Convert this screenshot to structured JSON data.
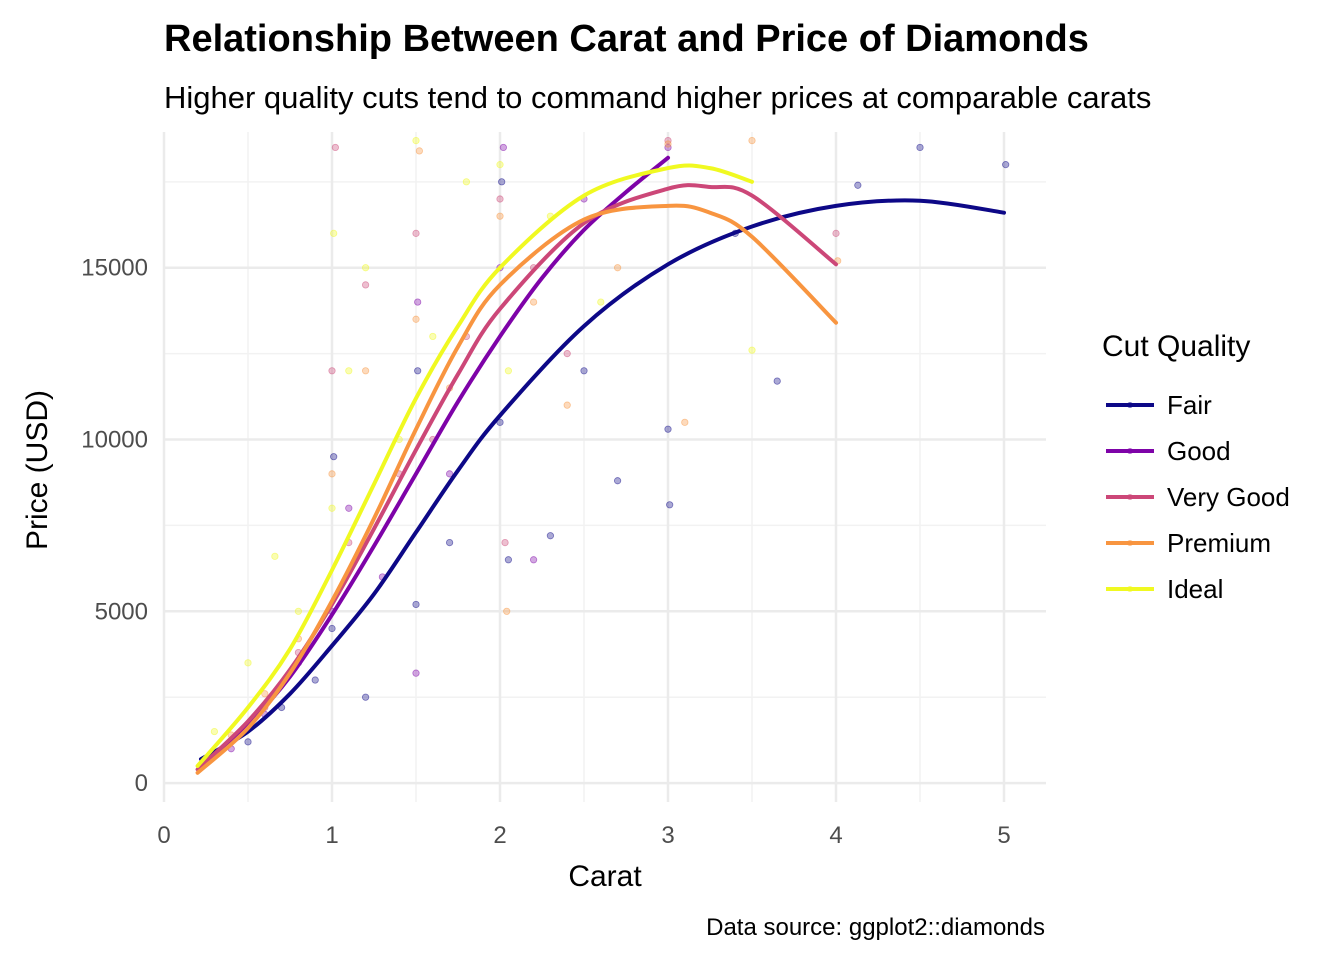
{
  "chart_data": {
    "type": "scatter",
    "title": "Relationship Between Carat and Price of Diamonds",
    "subtitle": "Higher quality cuts tend to command higher prices at comparable carats",
    "xlabel": "Carat",
    "ylabel": "Price (USD)",
    "caption": "Data source: ggplot2::diamonds",
    "xlim": [
      0,
      5.25
    ],
    "ylim": [
      -550,
      18950
    ],
    "x_ticks": [
      0,
      1,
      2,
      3,
      4,
      5
    ],
    "y_ticks": [
      0,
      5000,
      10000,
      15000
    ],
    "grid": true,
    "legend_title": "Cut Quality",
    "legend_position": "right",
    "series": [
      {
        "name": "Fair",
        "color": "#0d0887",
        "trend": {
          "x": [
            0.22,
            0.5,
            0.75,
            1.0,
            1.25,
            1.5,
            1.75,
            2.0,
            2.5,
            3.0,
            3.5,
            4.0,
            4.5,
            5.0
          ],
          "y": [
            700,
            1500,
            2600,
            4000,
            5500,
            7300,
            9100,
            10700,
            13300,
            15100,
            16200,
            16800,
            16950,
            16600
          ]
        },
        "points": {
          "x": [
            0.3,
            0.5,
            0.7,
            0.9,
            1.0,
            1.01,
            1.2,
            1.5,
            1.51,
            1.7,
            2.0,
            2.01,
            2.05,
            2.3,
            2.5,
            2.7,
            3.0,
            3.01,
            3.4,
            3.65,
            4.13,
            4.5,
            5.01
          ],
          "y": [
            800,
            1200,
            2200,
            3000,
            4500,
            9500,
            2500,
            5200,
            12000,
            7000,
            10500,
            17500,
            6500,
            7200,
            12000,
            8800,
            10300,
            8100,
            16000,
            11700,
            17400,
            18500,
            18000
          ]
        }
      },
      {
        "name": "Good",
        "color": "#7e03a8",
        "trend": {
          "x": [
            0.23,
            0.5,
            0.75,
            1.0,
            1.25,
            1.5,
            1.75,
            2.0,
            2.25,
            2.5,
            2.75,
            3.0
          ],
          "y": [
            500,
            1700,
            3100,
            4900,
            6900,
            9000,
            11100,
            13000,
            14700,
            16100,
            17200,
            18200
          ]
        },
        "points": {
          "x": [
            0.4,
            0.6,
            0.8,
            1.0,
            1.1,
            1.3,
            1.5,
            1.51,
            1.7,
            2.0,
            2.02,
            2.2,
            2.5,
            3.0
          ],
          "y": [
            1000,
            2000,
            3500,
            5000,
            8000,
            6000,
            3200,
            14000,
            9000,
            15000,
            18500,
            6500,
            17000,
            18500
          ]
        }
      },
      {
        "name": "Very Good",
        "color": "#cc4778",
        "trend": {
          "x": [
            0.2,
            0.5,
            0.75,
            1.0,
            1.25,
            1.5,
            1.75,
            2.0,
            2.5,
            3.0,
            3.25,
            3.5,
            4.0
          ],
          "y": [
            400,
            1800,
            3300,
            5200,
            7400,
            9700,
            11900,
            13800,
            16300,
            17300,
            17350,
            17100,
            15100
          ]
        },
        "points": {
          "x": [
            0.4,
            0.6,
            0.8,
            1.0,
            1.02,
            1.1,
            1.2,
            1.4,
            1.5,
            1.6,
            1.8,
            2.0,
            2.03,
            2.2,
            2.4,
            3.0,
            4.0
          ],
          "y": [
            1200,
            2200,
            3800,
            12000,
            18500,
            7000,
            14500,
            9000,
            16000,
            10000,
            13000,
            17000,
            7000,
            15000,
            12500,
            18700,
            16000
          ]
        }
      },
      {
        "name": "Premium",
        "color": "#f89540",
        "trend": {
          "x": [
            0.2,
            0.5,
            0.75,
            1.0,
            1.25,
            1.5,
            1.75,
            2.0,
            2.5,
            3.0,
            3.25,
            3.5,
            4.0
          ],
          "y": [
            300,
            1600,
            3200,
            5300,
            7700,
            10300,
            12700,
            14500,
            16400,
            16800,
            16600,
            15900,
            13400
          ]
        },
        "points": {
          "x": [
            0.4,
            0.6,
            0.8,
            1.0,
            1.2,
            1.5,
            1.52,
            1.7,
            2.0,
            2.04,
            2.2,
            2.4,
            2.7,
            3.0,
            3.1,
            3.5,
            4.01
          ],
          "y": [
            1400,
            2600,
            4200,
            9000,
            12000,
            13500,
            18400,
            11500,
            16500,
            5000,
            14000,
            11000,
            15000,
            18600,
            10500,
            18700,
            15200
          ]
        }
      },
      {
        "name": "Ideal",
        "color": "#f0f921",
        "trend": {
          "x": [
            0.2,
            0.5,
            0.75,
            1.0,
            1.25,
            1.5,
            1.75,
            2.0,
            2.5,
            3.0,
            3.25,
            3.5
          ],
          "y": [
            500,
            2200,
            3900,
            6200,
            8700,
            11200,
            13300,
            15000,
            17100,
            17900,
            17900,
            17500
          ]
        },
        "points": {
          "x": [
            0.3,
            0.5,
            0.66,
            0.8,
            1.0,
            1.01,
            1.1,
            1.2,
            1.4,
            1.5,
            1.6,
            1.8,
            2.0,
            2.05,
            2.3,
            2.6,
            3.5
          ],
          "y": [
            1500,
            3500,
            6600,
            5000,
            8000,
            16000,
            12000,
            15000,
            10000,
            18700,
            13000,
            17500,
            18000,
            12000,
            16500,
            14000,
            12600
          ]
        }
      }
    ]
  }
}
